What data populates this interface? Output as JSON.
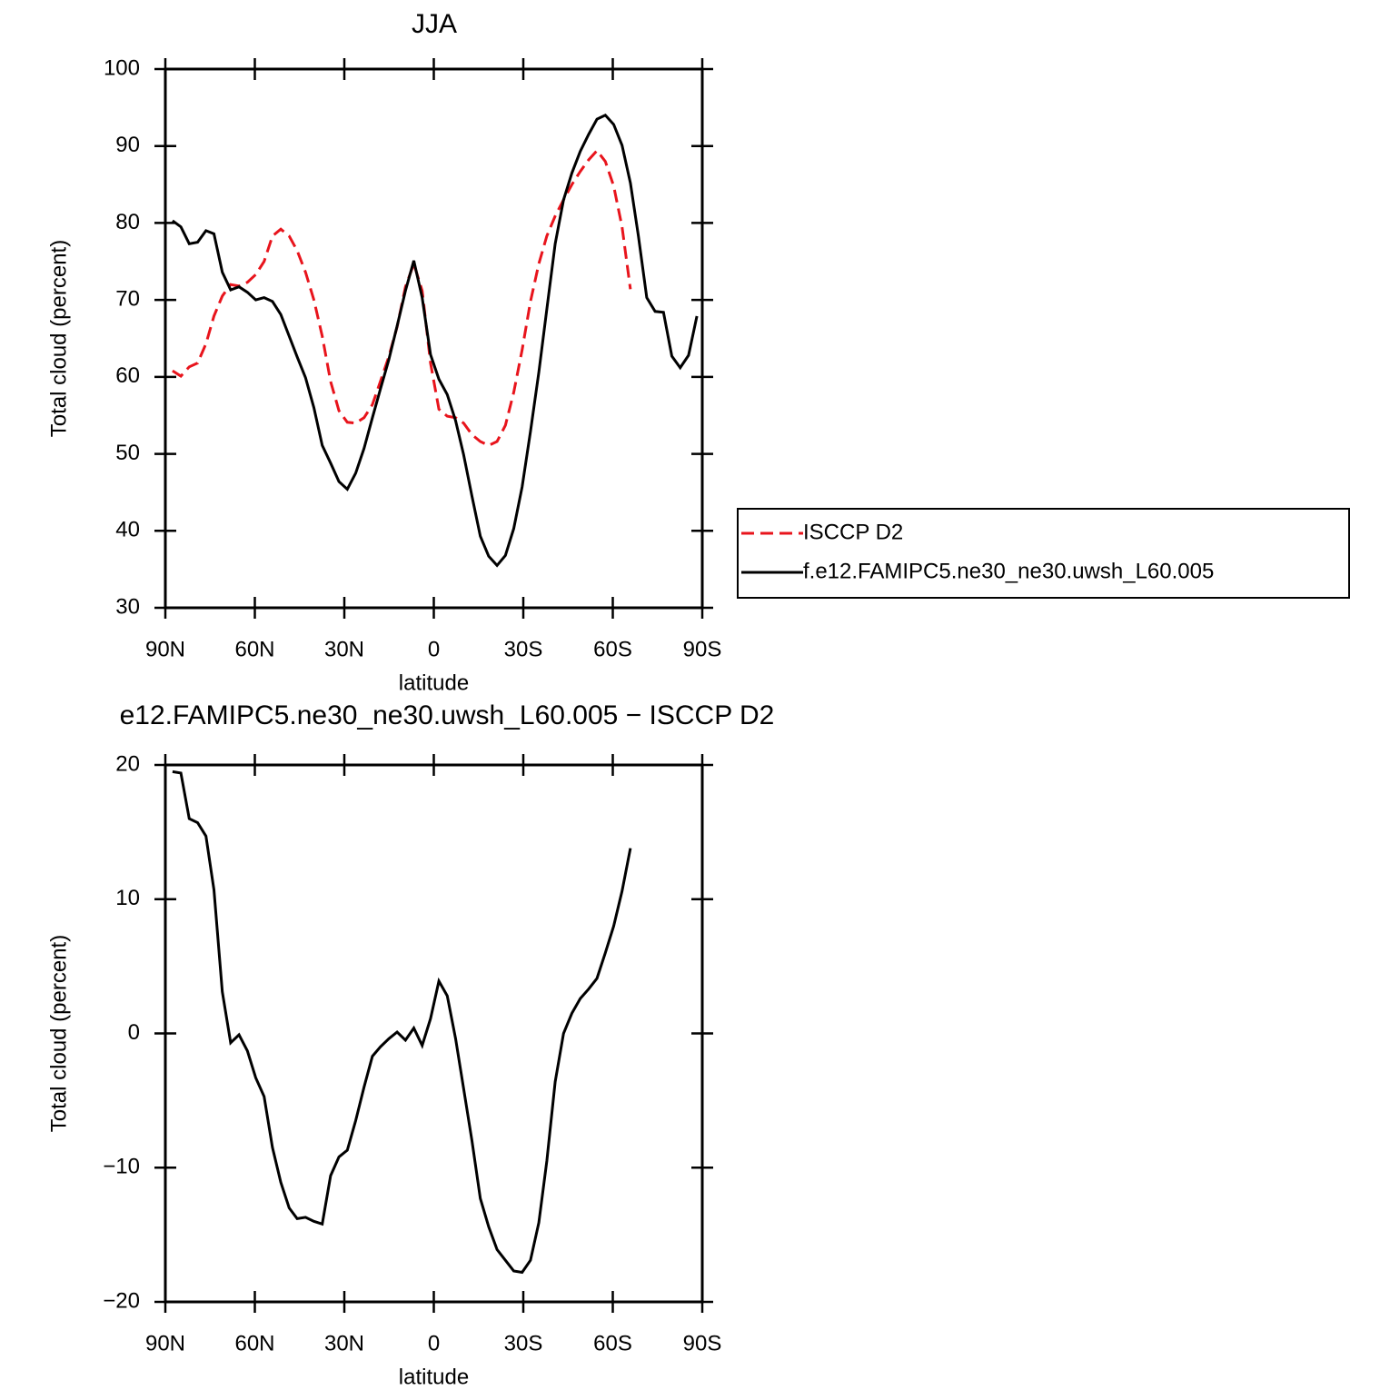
{
  "chart_data": [
    {
      "type": "line",
      "title": "JJA",
      "xlabel": "latitude",
      "ylabel": "Total cloud (percent)",
      "x": [
        87.6,
        84.8,
        82.0,
        79.2,
        76.4,
        73.7,
        70.9,
        68.1,
        65.3,
        62.5,
        59.7,
        56.9,
        54.1,
        51.3,
        48.5,
        45.8,
        43.0,
        40.2,
        37.4,
        34.6,
        31.8,
        29.0,
        26.2,
        23.4,
        20.6,
        17.9,
        15.1,
        12.3,
        9.5,
        6.7,
        3.9,
        1.1,
        -1.7,
        -4.5,
        -7.3,
        -10.0,
        -12.8,
        -15.6,
        -18.4,
        -21.2,
        -24.0,
        -26.8,
        -29.6,
        -32.4,
        -35.2,
        -37.9,
        -40.7,
        -43.5,
        -46.3,
        -49.1,
        -51.9,
        -54.7,
        -57.5,
        -60.3,
        -63.1,
        -65.9,
        -68.6,
        -71.4,
        -74.2,
        -77.0,
        -79.8,
        -82.6,
        -85.4,
        -88.2
      ],
      "series": [
        {
          "name": "ISCCP D2",
          "color": "#e8141c",
          "linestyle": "dashed",
          "values": [
            60.8,
            60.1,
            61.3,
            61.8,
            64.3,
            67.9,
            70.5,
            72.0,
            71.8,
            72.3,
            73.3,
            75.0,
            78.3,
            79.2,
            78.3,
            76.4,
            73.6,
            70.0,
            65.3,
            59.4,
            55.6,
            54.1,
            54.0,
            54.7,
            56.4,
            59.4,
            62.6,
            66.5,
            71.7,
            74.7,
            71.2,
            61.8,
            55.8,
            54.9,
            54.7,
            54.0,
            52.5,
            51.6,
            51.1,
            51.6,
            53.7,
            58.0,
            63.5,
            69.8,
            74.7,
            78.3,
            80.9,
            83.0,
            85.0,
            86.7,
            88.2,
            89.4,
            88.0,
            84.8,
            79.5,
            71.4,
            null,
            null,
            null,
            null,
            null,
            null,
            null,
            null
          ]
        },
        {
          "name": "f.e12.FAMIPC5.ne30_ne30.uwsh_L60.005",
          "color": "#000000",
          "linestyle": "solid",
          "values": [
            80.3,
            79.5,
            77.3,
            77.5,
            79.0,
            78.6,
            73.6,
            71.3,
            71.7,
            71.0,
            70.0,
            70.3,
            69.8,
            68.1,
            65.3,
            62.6,
            59.9,
            56.0,
            51.1,
            48.8,
            46.4,
            45.4,
            47.5,
            50.7,
            54.7,
            58.4,
            62.2,
            66.6,
            71.2,
            75.1,
            70.3,
            62.9,
            59.7,
            57.7,
            54.3,
            49.9,
            44.5,
            39.3,
            36.7,
            35.5,
            36.8,
            40.3,
            45.7,
            52.9,
            60.6,
            68.8,
            77.3,
            83.0,
            86.5,
            89.3,
            91.5,
            93.5,
            94.0,
            92.8,
            90.1,
            85.2,
            78.3,
            70.3,
            68.5,
            68.4,
            62.7,
            61.2,
            62.8,
            67.9
          ]
        }
      ],
      "xlim": [
        90,
        -90
      ],
      "ylim": [
        30,
        100
      ],
      "xticks": [
        {
          "value": 90,
          "label": "90N"
        },
        {
          "value": 60,
          "label": "60N"
        },
        {
          "value": 30,
          "label": "30N"
        },
        0,
        {
          "value": -30,
          "label": "30S"
        },
        {
          "value": -60,
          "label": "60S"
        },
        {
          "value": -90,
          "label": "90S"
        }
      ],
      "yticks": [
        30,
        40,
        50,
        60,
        70,
        80,
        90,
        100
      ],
      "legend": "right"
    },
    {
      "type": "line",
      "title": "e12.FAMIPC5.ne30_ne30.uwsh_L60.005 − ISCCP D2",
      "xlabel": "latitude",
      "ylabel": "Total cloud (percent)",
      "x": [
        87.6,
        84.8,
        82.0,
        79.2,
        76.4,
        73.7,
        70.9,
        68.1,
        65.3,
        62.5,
        59.7,
        56.9,
        54.1,
        51.3,
        48.5,
        45.8,
        43.0,
        40.2,
        37.4,
        34.6,
        31.8,
        29.0,
        26.2,
        23.4,
        20.6,
        17.9,
        15.1,
        12.3,
        9.5,
        6.7,
        3.9,
        1.1,
        -1.7,
        -4.5,
        -7.3,
        -10.0,
        -12.8,
        -15.6,
        -18.4,
        -21.2,
        -24.0,
        -26.8,
        -29.6,
        -32.4,
        -35.2,
        -37.9,
        -40.7,
        -43.5,
        -46.3,
        -49.1,
        -51.9,
        -54.7,
        -57.5,
        -60.3,
        -63.1,
        -65.9
      ],
      "values": [
        19.5,
        19.4,
        16.0,
        15.7,
        14.7,
        10.7,
        3.1,
        -0.7,
        -0.1,
        -1.3,
        -3.3,
        -4.7,
        -8.5,
        -11.1,
        -13.0,
        -13.8,
        -13.7,
        -14.0,
        -14.2,
        -10.6,
        -9.2,
        -8.7,
        -6.5,
        -4.0,
        -1.7,
        -1.0,
        -0.4,
        0.1,
        -0.5,
        0.4,
        -0.9,
        1.1,
        3.9,
        2.8,
        -0.4,
        -4.1,
        -8.0,
        -12.3,
        -14.4,
        -16.1,
        -16.9,
        -17.7,
        -17.8,
        -16.9,
        -14.1,
        -9.5,
        -3.6,
        0.0,
        1.5,
        2.6,
        3.3,
        4.1,
        6.0,
        8.0,
        10.6,
        13.8
      ],
      "color": "#000000",
      "xlim": [
        90,
        -90
      ],
      "ylim": [
        -20,
        20
      ],
      "xticks": [
        {
          "value": 90,
          "label": "90N"
        },
        {
          "value": 60,
          "label": "60N"
        },
        {
          "value": 30,
          "label": "30N"
        },
        0,
        {
          "value": -30,
          "label": "30S"
        },
        {
          "value": -60,
          "label": "60S"
        },
        {
          "value": -90,
          "label": "90S"
        }
      ],
      "yticks": [
        {
          "value": -20,
          "label": "−20"
        },
        {
          "value": -10,
          "label": "−10"
        },
        0,
        10,
        20
      ]
    }
  ]
}
